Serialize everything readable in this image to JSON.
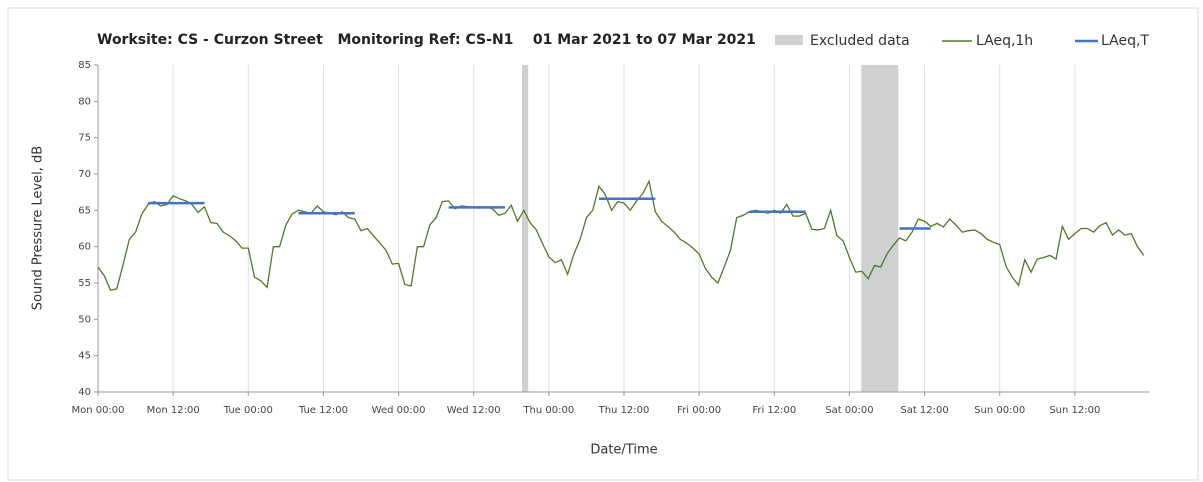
{
  "chart_data": {
    "type": "line",
    "title": "Worksite: CS - Curzon Street   Monitoring Ref: CS-N1    01 Mar 2021 to 07 Mar 2021",
    "xlabel": "Date/Time",
    "ylabel": "Sound Pressure Level, dB",
    "x": [
      0,
      1,
      2,
      3,
      4,
      5,
      6,
      7,
      8,
      9,
      10,
      11,
      12,
      13,
      14,
      15,
      16,
      17,
      18,
      19,
      20,
      21,
      22,
      23,
      24,
      25,
      26,
      27,
      28,
      29,
      30,
      31,
      32,
      33,
      34,
      35,
      36,
      37,
      38,
      39,
      40,
      41,
      42,
      43,
      44,
      45,
      46,
      47,
      48,
      49,
      50,
      51,
      52,
      53,
      54,
      55,
      56,
      57,
      58,
      59,
      60,
      61,
      62,
      63,
      64,
      65,
      66,
      67,
      68,
      69,
      70,
      71,
      72,
      73,
      74,
      75,
      76,
      77,
      78,
      79,
      80,
      81,
      82,
      83,
      84,
      85,
      86,
      87,
      88,
      89,
      90,
      91,
      92,
      93,
      94,
      95,
      96,
      97,
      98,
      99,
      100,
      101,
      102,
      103,
      104,
      105,
      106,
      107,
      108,
      109,
      110,
      111,
      112,
      113,
      114,
      115,
      116,
      117,
      118,
      119,
      120,
      121,
      122,
      123,
      124,
      125,
      126,
      127,
      128,
      129,
      130,
      131,
      132,
      133,
      134,
      135,
      136,
      137,
      138,
      139,
      140,
      141,
      142,
      143,
      144,
      145,
      146,
      147,
      148,
      149,
      150,
      151,
      152,
      153,
      154,
      155,
      156,
      157,
      158,
      159,
      160,
      161,
      162,
      163,
      164,
      165,
      166,
      167
    ],
    "series": [
      {
        "name": "LAeq,1h",
        "color": "#4f7a28",
        "values": [
          57.2,
          56.0,
          54.0,
          54.2,
          57.5,
          61.0,
          62.0,
          64.5,
          65.8,
          66.2,
          65.6,
          65.8,
          67.0,
          66.6,
          66.3,
          65.8,
          64.7,
          65.5,
          63.3,
          63.2,
          62.0,
          61.5,
          60.8,
          59.8,
          59.8,
          55.8,
          55.3,
          54.4,
          60.0,
          60.0,
          63.0,
          64.5,
          65.0,
          64.8,
          64.6,
          65.6,
          64.8,
          64.6,
          64.4,
          64.8,
          64.0,
          63.8,
          62.2,
          62.5,
          61.5,
          60.5,
          59.5,
          57.6,
          57.7,
          54.8,
          54.6,
          60.0,
          60.0,
          63.0,
          64.0,
          66.2,
          66.3,
          65.2,
          65.6,
          65.5,
          65.4,
          65.3,
          65.5,
          65.2,
          64.3,
          64.6,
          65.7,
          63.5,
          65.0,
          63.3,
          62.3,
          60.4,
          58.6,
          57.8,
          58.2,
          56.2,
          59.0,
          61.0,
          64.0,
          65.0,
          68.3,
          67.2,
          65.0,
          66.2,
          66.0,
          65.0,
          66.3,
          67.3,
          69.0,
          64.8,
          63.5,
          62.8,
          62.0,
          61.0,
          60.5,
          59.8,
          59.0,
          57.0,
          55.8,
          55.0,
          57.2,
          59.5,
          64.0,
          64.3,
          64.8,
          65.0,
          64.8,
          64.6,
          65.0,
          64.6,
          65.8,
          64.2,
          64.2,
          64.6,
          62.4,
          62.3,
          62.5,
          65.0,
          61.5,
          60.8,
          58.5,
          56.5,
          56.6,
          55.6,
          57.4,
          57.2,
          59.0,
          60.2,
          61.2,
          60.8,
          62.0,
          63.8,
          63.5,
          62.8,
          63.2,
          62.7,
          63.8,
          63.0,
          62.0,
          62.2,
          62.3,
          61.8,
          61.0,
          60.6,
          60.3,
          57.3,
          55.8,
          54.7,
          58.2,
          56.5,
          58.3,
          58.5,
          58.8,
          58.3,
          62.8,
          61.0,
          61.8,
          62.5,
          62.5,
          62.0,
          62.9,
          63.3,
          61.6,
          62.3,
          61.6,
          61.8,
          60.0,
          58.8
        ]
      }
    ],
    "excluded": {
      "name": "Excluded data",
      "color": "#d0d0d0",
      "ranges": [
        [
          67.7,
          68.7
        ],
        [
          121.9,
          127.8
        ]
      ]
    },
    "periods": {
      "name": "LAeq,T",
      "color": "#4472c4",
      "segments": [
        {
          "start": 8,
          "end": 17,
          "value": 66.0
        },
        {
          "start": 32,
          "end": 41,
          "value": 64.6
        },
        {
          "start": 56,
          "end": 65,
          "value": 65.4
        },
        {
          "start": 80,
          "end": 89,
          "value": 66.6
        },
        {
          "start": 104,
          "end": 113,
          "value": 64.8
        },
        {
          "start": 128,
          "end": 133,
          "value": 62.5
        }
      ]
    },
    "xlim": [
      0,
      168
    ],
    "xticks": [
      {
        "value": 0,
        "label": "Mon 00:00"
      },
      {
        "value": 12,
        "label": "Mon 12:00"
      },
      {
        "value": 24,
        "label": "Tue 00:00"
      },
      {
        "value": 36,
        "label": "Tue 12:00"
      },
      {
        "value": 48,
        "label": "Wed 00:00"
      },
      {
        "value": 60,
        "label": "Wed 12:00"
      },
      {
        "value": 72,
        "label": "Thu 00:00"
      },
      {
        "value": 84,
        "label": "Thu 12:00"
      },
      {
        "value": 96,
        "label": "Fri 00:00"
      },
      {
        "value": 108,
        "label": "Fri 12:00"
      },
      {
        "value": 120,
        "label": "Sat 00:00"
      },
      {
        "value": 132,
        "label": "Sat 12:00"
      },
      {
        "value": 144,
        "label": "Sun 00:00"
      },
      {
        "value": 156,
        "label": "Sun 12:00"
      }
    ],
    "ylim": [
      40,
      85
    ],
    "yticks": [
      40,
      45,
      50,
      55,
      60,
      65,
      70,
      75,
      80,
      85
    ],
    "xgrid": true
  }
}
